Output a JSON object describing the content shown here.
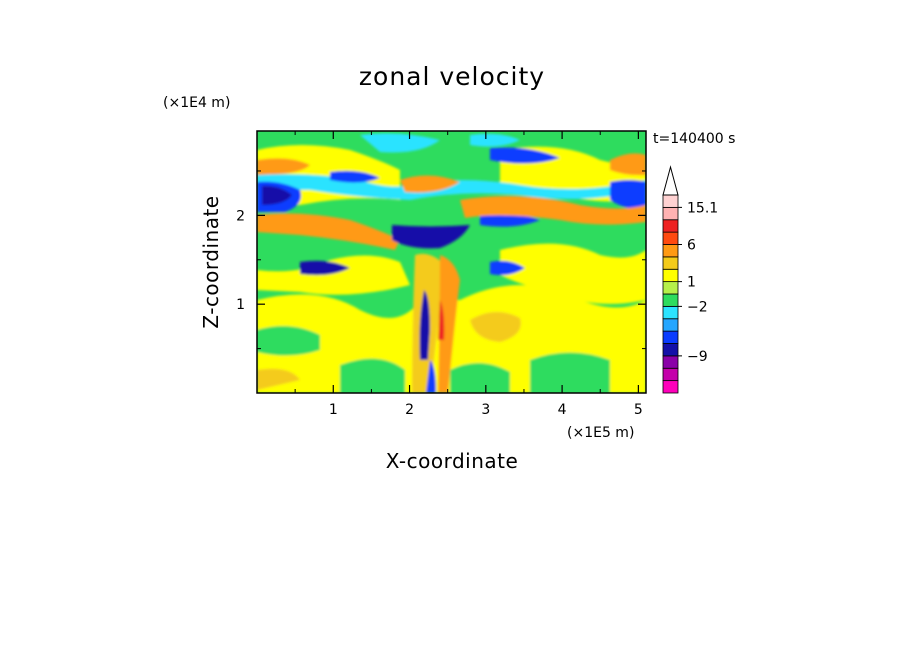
{
  "chart_data": {
    "type": "heatmap",
    "title": "zonal velocity",
    "xlabel": "X-coordinate",
    "ylabel": "Z-coordinate",
    "x_unit": "(×1E5 m)",
    "y_unit": "(×1E4 m)",
    "time_label": "t=140400 s",
    "xlim": [
      0,
      5.1
    ],
    "ylim": [
      0,
      2.95
    ],
    "x_ticks": [
      "1",
      "2",
      "3",
      "4",
      "5"
    ],
    "y_ticks": [
      "1",
      "2"
    ],
    "colorbar": {
      "colors": [
        "#ff00bb",
        "#c400aa",
        "#8a00a8",
        "#1410a8",
        "#0a3cff",
        "#25a6ff",
        "#2ce3ff",
        "#2edc5e",
        "#b6f04a",
        "#ffff00",
        "#f4cb1a",
        "#ff9a14",
        "#ff4a10",
        "#ee2222",
        "#ffb2b2",
        "#ffd2d2",
        "#ffffff"
      ],
      "labels": [
        {
          "text": "15.1",
          "level": 15.1
        },
        {
          "text": "6",
          "level": 6
        },
        {
          "text": "1",
          "level": 1
        },
        {
          "text": "−2",
          "level": -2
        },
        {
          "text": "−9",
          "level": -9
        }
      ]
    }
  }
}
